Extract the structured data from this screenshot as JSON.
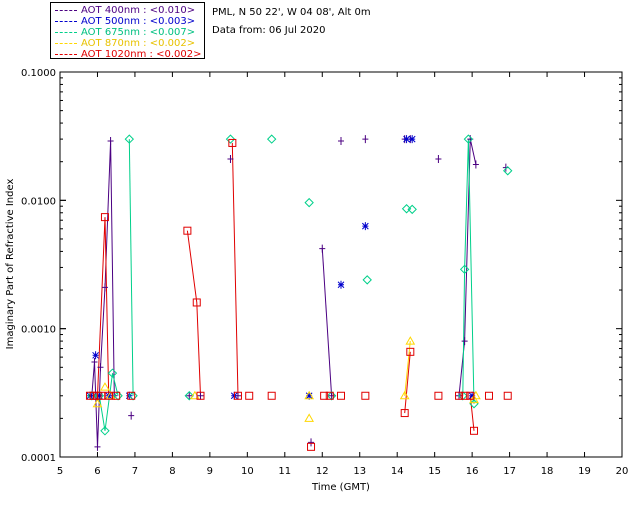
{
  "header": {
    "site": "PML, N 50 22', W 04 08', Alt 0m",
    "date": "Data from: 06 Jul 2020"
  },
  "chart_data": {
    "type": "scatter",
    "xlabel": "Time (GMT)",
    "ylabel": "Imaginary Part of Refractive Index",
    "xlim": [
      5,
      20
    ],
    "ylim": [
      0.0001,
      0.1
    ],
    "yscale": "log",
    "x_ticks": [
      "5",
      "6",
      "7",
      "8",
      "9",
      "10",
      "11",
      "12",
      "13",
      "14",
      "15",
      "16",
      "17",
      "18",
      "19",
      "20"
    ],
    "y_ticks": [
      "0.0001",
      "0.0010",
      "0.0100",
      "0.1000"
    ],
    "legend_position": "top-left, outside plot",
    "series": [
      {
        "name": "AOT  400nm : <0.010>",
        "color": "#4b0082",
        "marker": "plus",
        "points": [
          [
            5.85,
            0.0003
          ],
          [
            5.92,
            0.00055
          ],
          [
            6.0,
            0.00012
          ],
          [
            6.08,
            0.0005
          ],
          [
            6.2,
            0.0021
          ],
          [
            6.35,
            0.029
          ],
          [
            6.45,
            0.0003
          ],
          [
            6.9,
            0.00021
          ],
          [
            8.45,
            0.0003
          ],
          [
            8.75,
            0.0003
          ],
          [
            9.55,
            0.021
          ],
          [
            9.75,
            0.0003
          ],
          [
            11.7,
            0.00013
          ],
          [
            12.0,
            0.0042
          ],
          [
            12.25,
            0.0003
          ],
          [
            12.5,
            0.029
          ],
          [
            13.15,
            0.03
          ],
          [
            14.2,
            0.03
          ],
          [
            14.35,
            0.03
          ],
          [
            15.1,
            0.021
          ],
          [
            15.65,
            0.0003
          ],
          [
            15.8,
            0.0008
          ],
          [
            15.95,
            0.03
          ],
          [
            16.1,
            0.019
          ],
          [
            16.9,
            0.018
          ]
        ],
        "segments": [
          [
            [
              5.85,
              0.0003
            ],
            [
              5.92,
              0.00055
            ],
            [
              6.0,
              0.00012
            ],
            [
              6.08,
              0.0005
            ],
            [
              6.2,
              0.0021
            ],
            [
              6.35,
              0.029
            ],
            [
              6.45,
              0.0003
            ]
          ],
          [
            [
              12.0,
              0.0042
            ],
            [
              12.25,
              0.0003
            ]
          ],
          [
            [
              15.65,
              0.0003
            ],
            [
              15.8,
              0.0008
            ],
            [
              15.95,
              0.03
            ],
            [
              16.1,
              0.019
            ]
          ]
        ]
      },
      {
        "name": "AOT  500nm : <0.003>",
        "color": "#0000cd",
        "marker": "asterisk",
        "points": [
          [
            5.8,
            0.0003
          ],
          [
            5.95,
            0.00062
          ],
          [
            6.05,
            0.0003
          ],
          [
            6.3,
            0.0003
          ],
          [
            6.85,
            0.0003
          ],
          [
            9.65,
            0.0003
          ],
          [
            11.65,
            0.0003
          ],
          [
            12.5,
            0.0022
          ],
          [
            13.15,
            0.0063
          ],
          [
            14.25,
            0.03
          ],
          [
            14.4,
            0.03
          ],
          [
            16.0,
            0.0003
          ]
        ],
        "segments": []
      },
      {
        "name": "AOT  675nm : <0.007>",
        "color": "#00d08a",
        "marker": "diamond",
        "points": [
          [
            5.85,
            0.0003
          ],
          [
            6.05,
            0.0003
          ],
          [
            6.2,
            0.00016
          ],
          [
            6.4,
            0.00045
          ],
          [
            6.55,
            0.0003
          ],
          [
            6.85,
            0.03
          ],
          [
            6.95,
            0.0003
          ],
          [
            8.45,
            0.0003
          ],
          [
            9.55,
            0.03
          ],
          [
            10.65,
            0.03
          ],
          [
            11.65,
            0.0096
          ],
          [
            12.25,
            0.0003
          ],
          [
            13.2,
            0.0024
          ],
          [
            14.25,
            0.0086
          ],
          [
            14.4,
            0.0085
          ],
          [
            15.75,
            0.0003
          ],
          [
            15.8,
            0.0029
          ],
          [
            15.9,
            0.03
          ],
          [
            16.05,
            0.00026
          ],
          [
            16.95,
            0.017
          ]
        ],
        "segments": [
          [
            [
              6.05,
              0.0003
            ],
            [
              6.2,
              0.00016
            ],
            [
              6.4,
              0.00045
            ],
            [
              6.55,
              0.0003
            ]
          ],
          [
            [
              6.85,
              0.03
            ],
            [
              6.95,
              0.0003
            ]
          ],
          [
            [
              15.75,
              0.0003
            ],
            [
              15.8,
              0.0029
            ],
            [
              15.9,
              0.03
            ],
            [
              16.05,
              0.00026
            ]
          ]
        ]
      },
      {
        "name": "AOT  870nm : <0.002>",
        "color": "#ffd700",
        "marker": "triangle",
        "points": [
          [
            6.0,
            0.00026
          ],
          [
            6.2,
            0.00035
          ],
          [
            6.35,
            0.0003
          ],
          [
            8.6,
            0.0003
          ],
          [
            11.65,
            0.0002
          ],
          [
            11.65,
            0.0003
          ],
          [
            14.2,
            0.0003
          ],
          [
            14.35,
            0.0008
          ],
          [
            16.05,
            0.00028
          ],
          [
            16.1,
            0.0003
          ]
        ],
        "segments": [
          [
            [
              14.2,
              0.0003
            ],
            [
              14.35,
              0.0008
            ]
          ]
        ]
      },
      {
        "name": "AOT 1020nm : <0.002>",
        "color": "#e00000",
        "marker": "square",
        "points": [
          [
            5.8,
            0.0003
          ],
          [
            5.9,
            0.0003
          ],
          [
            6.0,
            0.0003
          ],
          [
            6.1,
            0.0003
          ],
          [
            6.2,
            0.0074
          ],
          [
            6.3,
            0.0003
          ],
          [
            6.5,
            0.0003
          ],
          [
            6.9,
            0.0003
          ],
          [
            8.4,
            0.0058
          ],
          [
            8.65,
            0.0016
          ],
          [
            8.75,
            0.0003
          ],
          [
            9.6,
            0.028
          ],
          [
            9.75,
            0.0003
          ],
          [
            10.05,
            0.0003
          ],
          [
            10.65,
            0.0003
          ],
          [
            11.7,
            0.00012
          ],
          [
            12.05,
            0.0003
          ],
          [
            12.2,
            0.0003
          ],
          [
            12.5,
            0.0003
          ],
          [
            13.15,
            0.0003
          ],
          [
            14.2,
            0.00022
          ],
          [
            14.35,
            0.00066
          ],
          [
            15.1,
            0.0003
          ],
          [
            15.65,
            0.0003
          ],
          [
            15.8,
            0.0003
          ],
          [
            15.95,
            0.0003
          ],
          [
            16.05,
            0.00016
          ],
          [
            16.45,
            0.0003
          ],
          [
            16.95,
            0.0003
          ]
        ],
        "segments": [
          [
            [
              6.0,
              0.0003
            ],
            [
              6.2,
              0.0074
            ],
            [
              6.3,
              0.0003
            ]
          ],
          [
            [
              8.4,
              0.0058
            ],
            [
              8.65,
              0.0016
            ],
            [
              8.75,
              0.0003
            ]
          ],
          [
            [
              9.6,
              0.028
            ],
            [
              9.75,
              0.0003
            ]
          ],
          [
            [
              14.2,
              0.00022
            ],
            [
              14.35,
              0.00066
            ]
          ],
          [
            [
              15.95,
              0.0003
            ],
            [
              16.05,
              0.00016
            ]
          ]
        ]
      }
    ]
  }
}
